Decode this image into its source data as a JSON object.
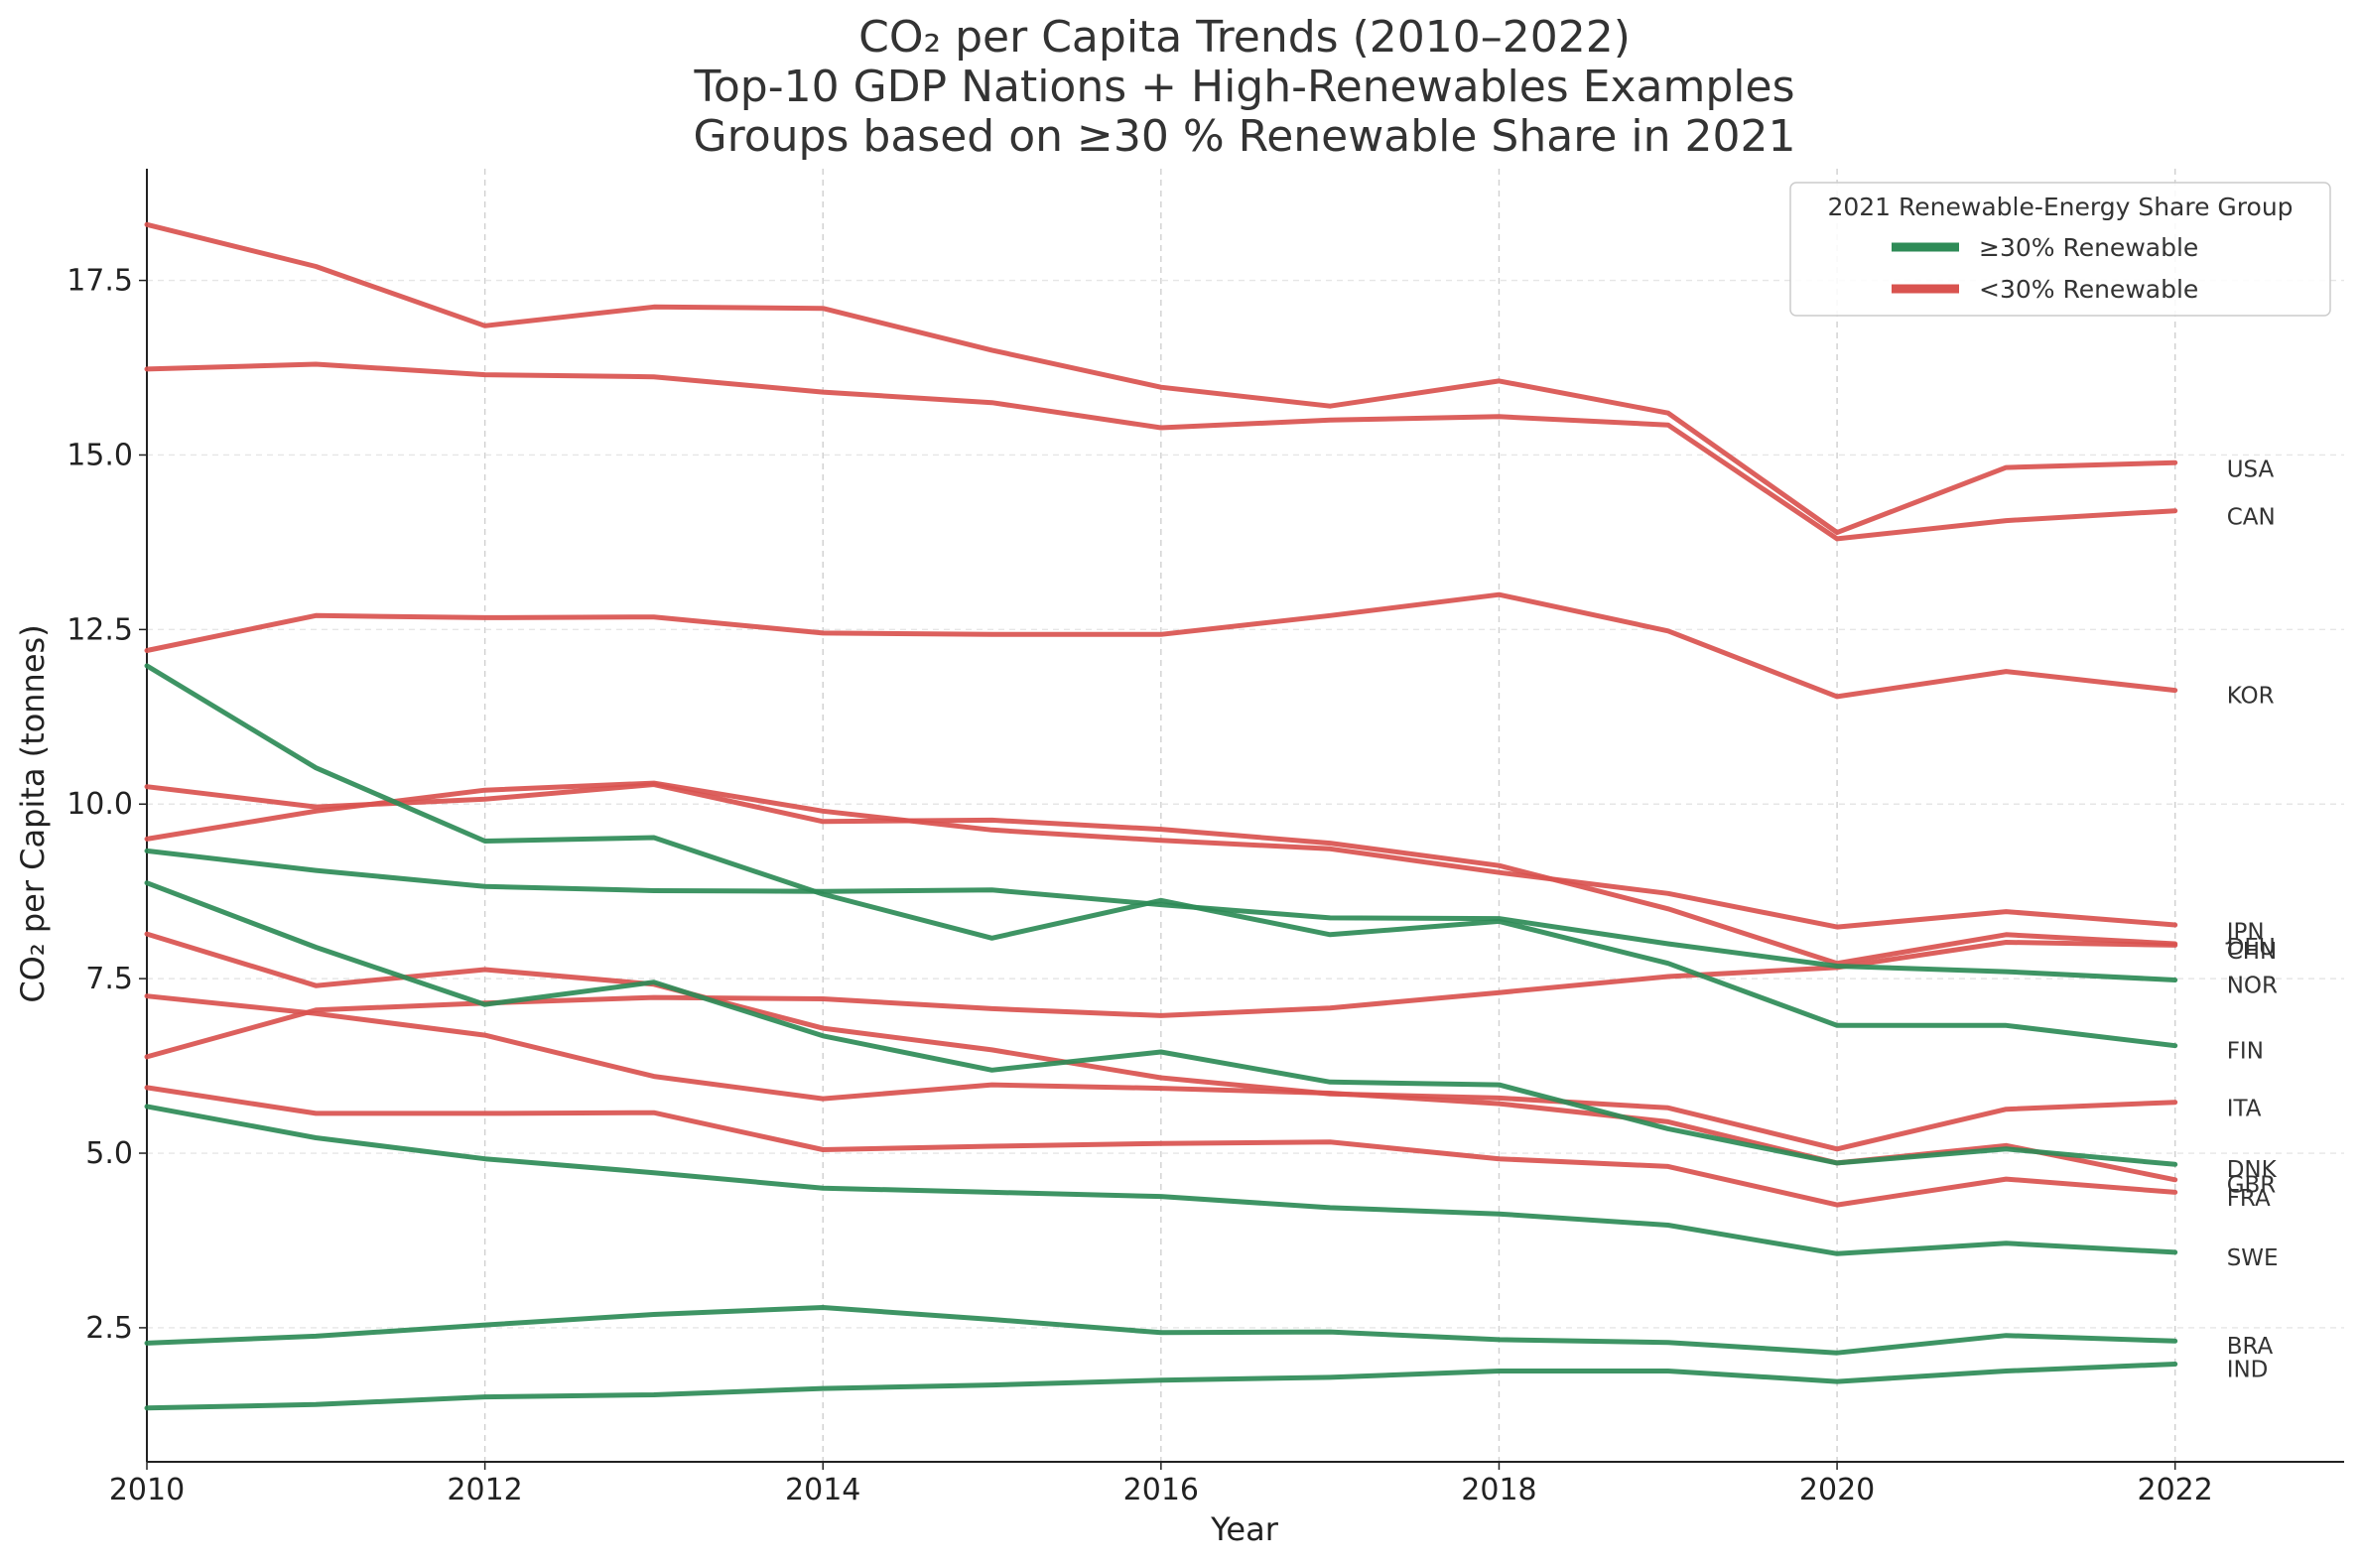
{
  "chart_data": {
    "type": "line",
    "title_lines": [
      "CO₂ per Capita Trends (2010–2022)",
      "Top-10 GDP Nations + High-Renewables Examples",
      "Groups based on ≥30 % Renewable Share in 2021"
    ],
    "xlabel": "Year",
    "ylabel": "CO₂ per Capita (tonnes)",
    "xlim": [
      2010,
      2023
    ],
    "ylim": [
      0.58,
      19.1
    ],
    "xticks": [
      2010,
      2012,
      2014,
      2016,
      2018,
      2020,
      2022
    ],
    "xtick_labels": [
      "2010",
      "2012",
      "2014",
      "2016",
      "2018",
      "2020",
      "2022"
    ],
    "yticks": [
      2.5,
      5.0,
      7.5,
      10.0,
      12.5,
      15.0,
      17.5
    ],
    "ytick_labels": [
      "2.5",
      "5.0",
      "7.5",
      "10.0",
      "12.5",
      "15.0",
      "17.5"
    ],
    "grid": true,
    "legend": {
      "title": "2021 Renewable-Energy Share Group",
      "placement": "top-right",
      "entries": [
        {
          "label": "≥30% Renewable",
          "color": "#2e8b57"
        },
        {
          "label": "<30% Renewable",
          "color": "#d9534f"
        }
      ]
    },
    "colors": {
      "high": "#2e8b57",
      "low": "#d9534f"
    },
    "x": [
      2010,
      2011,
      2012,
      2013,
      2014,
      2015,
      2016,
      2017,
      2018,
      2019,
      2020,
      2021,
      2022
    ],
    "series": [
      {
        "name": "USA",
        "group": "low",
        "values": [
          18.3,
          17.7,
          16.85,
          17.12,
          17.1,
          16.5,
          15.97,
          15.7,
          16.06,
          15.6,
          13.89,
          14.82,
          14.89
        ]
      },
      {
        "name": "CAN",
        "group": "low",
        "values": [
          16.23,
          16.3,
          16.15,
          16.12,
          15.9,
          15.75,
          15.39,
          15.5,
          15.55,
          15.43,
          13.8,
          14.06,
          14.2
        ]
      },
      {
        "name": "KOR",
        "group": "low",
        "values": [
          12.2,
          12.7,
          12.67,
          12.68,
          12.45,
          12.43,
          12.43,
          12.7,
          13.0,
          12.48,
          11.54,
          11.9,
          11.63
        ]
      },
      {
        "name": "JPN",
        "group": "low",
        "values": [
          9.5,
          9.9,
          10.2,
          10.3,
          9.9,
          9.63,
          9.48,
          9.36,
          9.02,
          8.72,
          8.24,
          8.46,
          8.27
        ]
      },
      {
        "name": "DEU",
        "group": "low",
        "values": [
          10.25,
          9.96,
          10.07,
          10.28,
          9.75,
          9.77,
          9.64,
          9.44,
          9.12,
          8.5,
          7.72,
          8.13,
          8.0
        ]
      },
      {
        "name": "CHN",
        "group": "low",
        "values": [
          6.38,
          7.05,
          7.15,
          7.23,
          7.21,
          7.07,
          6.97,
          7.08,
          7.3,
          7.53,
          7.66,
          8.02,
          7.98
        ]
      },
      {
        "name": "ITA",
        "group": "low",
        "values": [
          8.14,
          7.4,
          7.63,
          7.42,
          6.79,
          6.48,
          6.08,
          5.85,
          5.79,
          5.65,
          5.06,
          5.63,
          5.73
        ]
      },
      {
        "name": "GBR",
        "group": "low",
        "values": [
          7.25,
          7.0,
          6.69,
          6.1,
          5.78,
          5.98,
          5.93,
          5.86,
          5.71,
          5.45,
          4.86,
          5.11,
          4.62
        ]
      },
      {
        "name": "FRA",
        "group": "low",
        "values": [
          5.94,
          5.57,
          5.57,
          5.58,
          5.05,
          5.1,
          5.14,
          5.16,
          4.92,
          4.81,
          4.26,
          4.63,
          4.44
        ]
      },
      {
        "name": "NOR",
        "group": "high",
        "values": [
          9.33,
          9.05,
          8.82,
          8.76,
          8.75,
          8.77,
          8.56,
          8.37,
          8.36,
          8.0,
          7.68,
          7.6,
          7.48
        ]
      },
      {
        "name": "FIN",
        "group": "high",
        "values": [
          11.98,
          10.52,
          9.47,
          9.52,
          8.71,
          8.08,
          8.62,
          8.13,
          8.32,
          7.72,
          6.83,
          6.83,
          6.54
        ]
      },
      {
        "name": "DNK",
        "group": "high",
        "values": [
          8.87,
          7.95,
          7.13,
          7.45,
          6.68,
          6.19,
          6.45,
          6.02,
          5.98,
          5.35,
          4.86,
          5.06,
          4.84
        ]
      },
      {
        "name": "SWE",
        "group": "high",
        "values": [
          5.67,
          5.22,
          4.92,
          4.72,
          4.5,
          4.44,
          4.38,
          4.22,
          4.13,
          3.97,
          3.56,
          3.71,
          3.58
        ]
      },
      {
        "name": "BRA",
        "group": "high",
        "values": [
          2.28,
          2.38,
          2.54,
          2.69,
          2.79,
          2.62,
          2.43,
          2.44,
          2.33,
          2.29,
          2.14,
          2.39,
          2.31
        ]
      },
      {
        "name": "IND",
        "group": "high",
        "values": [
          1.35,
          1.4,
          1.51,
          1.54,
          1.63,
          1.68,
          1.75,
          1.79,
          1.88,
          1.88,
          1.73,
          1.88,
          1.98
        ]
      }
    ],
    "end_labels": [
      {
        "name": "USA",
        "at": 14.8
      },
      {
        "name": "CAN",
        "at": 14.12
      },
      {
        "name": "KOR",
        "at": 11.56
      },
      {
        "name": "JPN",
        "at": 8.18
      },
      {
        "name": "DEU",
        "at": 7.96
      },
      {
        "name": "CHN",
        "at": 7.9
      },
      {
        "name": "NOR",
        "at": 7.41
      },
      {
        "name": "FIN",
        "at": 6.47
      },
      {
        "name": "ITA",
        "at": 5.65
      },
      {
        "name": "DNK",
        "at": 4.77
      },
      {
        "name": "GBR",
        "at": 4.55
      },
      {
        "name": "FRA",
        "at": 4.36
      },
      {
        "name": "SWE",
        "at": 3.51
      },
      {
        "name": "BRA",
        "at": 2.24
      },
      {
        "name": "IND",
        "at": 1.91
      }
    ]
  }
}
